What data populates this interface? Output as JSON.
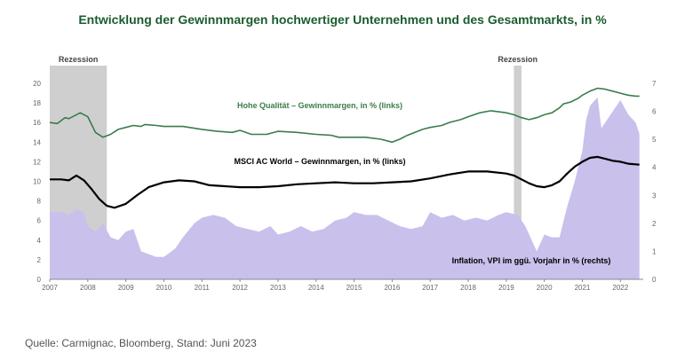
{
  "chart_data": {
    "type": "line",
    "title": "Entwicklung der Gewinnmargen hochwertiger Unternehmen und des Gesamtmarkts, in %",
    "x_start": 2007.0,
    "x_end": 2022.6,
    "x_ticks": [
      "2007",
      "2008",
      "2009",
      "2010",
      "2011",
      "2012",
      "2013",
      "2014",
      "2015",
      "2016",
      "2017",
      "2018",
      "2019",
      "2020",
      "2021",
      "2022"
    ],
    "y_left": {
      "range": [
        0,
        20
      ],
      "ticks": [
        "0",
        "2",
        "4",
        "6",
        "8",
        "10",
        "12",
        "14",
        "16",
        "18",
        "20"
      ]
    },
    "y_right": {
      "range": [
        0,
        7
      ],
      "ticks": [
        "0",
        "1",
        "2",
        "3",
        "4",
        "5",
        "6",
        "7"
      ]
    },
    "recessions": [
      {
        "label": "Rezession",
        "start": 2007.0,
        "end": 2008.5
      },
      {
        "label": "Rezession",
        "start": 2019.2,
        "end": 2019.4
      }
    ],
    "series": [
      {
        "name": "Hohe Qualität – Gewinnmargen, in % (links)",
        "axis": "left",
        "style": "line",
        "color": "#3a7d4a",
        "label_color": "#3a7d4a",
        "x": [
          2007.0,
          2007.2,
          2007.4,
          2007.5,
          2007.7,
          2007.8,
          2008.0,
          2008.1,
          2008.2,
          2008.4,
          2008.6,
          2008.8,
          2009.0,
          2009.2,
          2009.4,
          2009.5,
          2009.8,
          2010.0,
          2010.5,
          2011.0,
          2011.4,
          2011.8,
          2012.0,
          2012.3,
          2012.7,
          2013.0,
          2013.5,
          2014.0,
          2014.4,
          2014.6,
          2015.0,
          2015.3,
          2015.7,
          2016.0,
          2016.2,
          2016.4,
          2016.6,
          2016.8,
          2017.0,
          2017.3,
          2017.5,
          2017.8,
          2018.0,
          2018.3,
          2018.6,
          2019.0,
          2019.2,
          2019.4,
          2019.6,
          2019.8,
          2020.0,
          2020.2,
          2020.4,
          2020.5,
          2020.7,
          2020.9,
          2021.0,
          2021.2,
          2021.4,
          2021.6,
          2021.8,
          2022.0,
          2022.2,
          2022.4,
          2022.5
        ],
        "values": [
          16.0,
          15.9,
          16.5,
          16.4,
          16.8,
          17.0,
          16.6,
          15.8,
          15.0,
          14.5,
          14.8,
          15.3,
          15.5,
          15.7,
          15.6,
          15.8,
          15.7,
          15.6,
          15.6,
          15.3,
          15.1,
          15.0,
          15.2,
          14.8,
          14.8,
          15.1,
          15.0,
          14.8,
          14.7,
          14.5,
          14.5,
          14.5,
          14.3,
          14.0,
          14.3,
          14.7,
          15.0,
          15.3,
          15.5,
          15.7,
          16.0,
          16.3,
          16.6,
          17.0,
          17.2,
          17.0,
          16.8,
          16.5,
          16.3,
          16.5,
          16.8,
          17.0,
          17.5,
          17.9,
          18.1,
          18.5,
          18.8,
          19.2,
          19.5,
          19.4,
          19.2,
          19.0,
          18.8,
          18.7,
          18.7
        ]
      },
      {
        "name": "MSCI AC World – Gewinnmargen, in % (links)",
        "axis": "left",
        "style": "line",
        "color": "#000000",
        "label_color": "#000000",
        "x": [
          2007.0,
          2007.3,
          2007.5,
          2007.7,
          2007.9,
          2008.1,
          2008.3,
          2008.5,
          2008.7,
          2009.0,
          2009.3,
          2009.6,
          2010.0,
          2010.4,
          2010.8,
          2011.2,
          2011.6,
          2012.0,
          2012.5,
          2013.0,
          2013.5,
          2014.0,
          2014.5,
          2015.0,
          2015.5,
          2016.0,
          2016.5,
          2017.0,
          2017.5,
          2018.0,
          2018.5,
          2019.0,
          2019.2,
          2019.4,
          2019.6,
          2019.8,
          2020.0,
          2020.2,
          2020.4,
          2020.6,
          2020.8,
          2021.0,
          2021.2,
          2021.4,
          2021.6,
          2021.8,
          2022.0,
          2022.2,
          2022.5
        ],
        "values": [
          10.2,
          10.2,
          10.1,
          10.6,
          10.1,
          9.2,
          8.2,
          7.5,
          7.3,
          7.7,
          8.6,
          9.4,
          9.9,
          10.1,
          10.0,
          9.6,
          9.5,
          9.4,
          9.4,
          9.5,
          9.7,
          9.8,
          9.9,
          9.8,
          9.8,
          9.9,
          10.0,
          10.3,
          10.7,
          11.0,
          11.0,
          10.8,
          10.6,
          10.2,
          9.8,
          9.5,
          9.4,
          9.6,
          10.0,
          10.8,
          11.5,
          12.0,
          12.4,
          12.5,
          12.3,
          12.1,
          12.0,
          11.8,
          11.7
        ]
      },
      {
        "name": "Inflation, VPI im ggü. Vorjahr in % (rechts)",
        "axis": "right",
        "style": "area",
        "color": "#c9c0ec",
        "label_color": "#000000",
        "x": [
          2007.0,
          2007.3,
          2007.5,
          2007.7,
          2007.9,
          2008.0,
          2008.2,
          2008.4,
          2008.6,
          2008.8,
          2009.0,
          2009.2,
          2009.4,
          2009.6,
          2009.8,
          2010.0,
          2010.3,
          2010.5,
          2010.8,
          2011.0,
          2011.3,
          2011.6,
          2011.9,
          2012.2,
          2012.5,
          2012.8,
          2013.0,
          2013.3,
          2013.6,
          2013.9,
          2014.2,
          2014.5,
          2014.8,
          2015.0,
          2015.3,
          2015.6,
          2015.9,
          2016.2,
          2016.5,
          2016.8,
          2017.0,
          2017.3,
          2017.6,
          2017.9,
          2018.2,
          2018.5,
          2018.8,
          2019.0,
          2019.3,
          2019.5,
          2019.8,
          2020.0,
          2020.2,
          2020.4,
          2020.6,
          2020.8,
          2021.0,
          2021.1,
          2021.2,
          2021.4,
          2021.5,
          2021.6,
          2021.8,
          2022.0,
          2022.2,
          2022.4,
          2022.5
        ],
        "values": [
          2.4,
          2.4,
          2.3,
          2.5,
          2.4,
          1.9,
          1.7,
          2.0,
          1.5,
          1.4,
          1.7,
          1.8,
          1.0,
          0.9,
          0.8,
          0.8,
          1.1,
          1.5,
          2.0,
          2.2,
          2.3,
          2.2,
          1.9,
          1.8,
          1.7,
          1.9,
          1.6,
          1.7,
          1.9,
          1.7,
          1.8,
          2.1,
          2.2,
          2.4,
          2.3,
          2.3,
          2.1,
          1.9,
          1.8,
          1.9,
          2.4,
          2.2,
          2.3,
          2.1,
          2.2,
          2.1,
          2.3,
          2.4,
          2.3,
          1.9,
          1.0,
          1.6,
          1.5,
          1.5,
          2.6,
          3.5,
          4.6,
          5.7,
          6.2,
          6.5,
          5.4,
          5.6,
          6.0,
          6.4,
          5.9,
          5.6,
          5.2
        ]
      }
    ],
    "annotations": {
      "high_quality_label": "Hohe Qualität – Gewinnmargen, in % (links)",
      "msci_label": "MSCI AC World – Gewinnmargen, in % (links)",
      "inflation_label": "Inflation, VPI im ggü. Vorjahr in % (rechts)"
    }
  },
  "source": "Quelle: Carmignac, Bloomberg, Stand: Juni 2023"
}
